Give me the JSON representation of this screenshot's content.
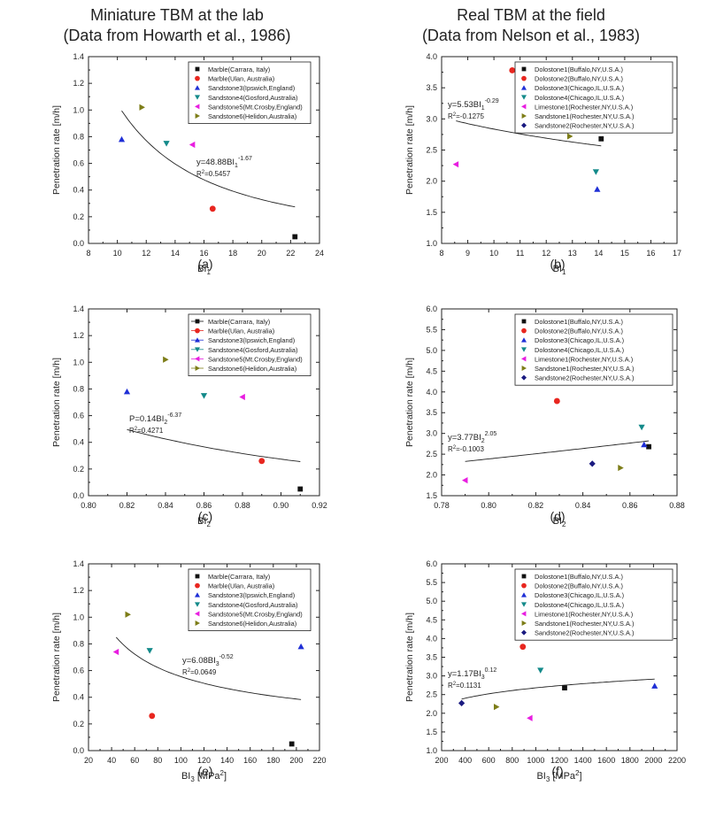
{
  "headers": {
    "left": {
      "line1": "Miniature TBM at the lab",
      "line2": "(Data from Howarth et al., 1986)"
    },
    "right": {
      "line1": "Real TBM at the field",
      "line2": "(Data from Nelson et al., 1983)"
    }
  },
  "colors": {
    "black": "#111111",
    "red": "#e8261f",
    "blue": "#1f2fd6",
    "teal": "#138a8a",
    "magenta": "#e81ee0",
    "olive": "#7d7d18",
    "navy": "#1a1a80"
  },
  "chart_data": [
    {
      "panel_label": "(a)",
      "type": "scatter",
      "xlabel": "BI",
      "xlabel_sub": "1",
      "xlabel_unit": "",
      "ylabel": "Penetration rate [m/h]",
      "xlim": [
        8,
        24
      ],
      "ylim": [
        0.0,
        1.4
      ],
      "xticks": [
        "8",
        "10",
        "12",
        "14",
        "16",
        "18",
        "20",
        "22",
        "24"
      ],
      "yticks": [
        "0.0",
        "0.2",
        "0.4",
        "0.6",
        "0.8",
        "1.0",
        "1.2",
        "1.4"
      ],
      "legend_placement": "top-right",
      "series": [
        {
          "name": "Marble(Carrara, Italy)",
          "marker": "square",
          "color": "black",
          "x": [
            22.3
          ],
          "y": [
            0.05
          ]
        },
        {
          "name": "Marble(Ulan, Australia)",
          "marker": "circle",
          "color": "red",
          "x": [
            16.6
          ],
          "y": [
            0.26
          ]
        },
        {
          "name": "Sandstone3(Ipswich,England)",
          "marker": "triangle-up",
          "color": "blue",
          "x": [
            10.3
          ],
          "y": [
            0.78
          ]
        },
        {
          "name": "Sandstone4(Gosford,Australia)",
          "marker": "triangle-down",
          "color": "teal",
          "x": [
            13.4
          ],
          "y": [
            0.75
          ]
        },
        {
          "name": "Sandstone5(Mt.Crosby,England)",
          "marker": "triangle-left",
          "color": "magenta",
          "x": [
            15.2
          ],
          "y": [
            0.74
          ]
        },
        {
          "name": "Sandstone6(Helidon,Australia)",
          "marker": "triangle-right",
          "color": "olive",
          "x": [
            11.7
          ],
          "y": [
            1.02
          ]
        }
      ],
      "fit": {
        "type": "power",
        "a": 48.88,
        "b": -1.67,
        "x_range": [
          10.3,
          22.3
        ],
        "eq_prefix": "y=48.88BI",
        "eq_sub": "1",
        "eq_sup": "-1.67",
        "r2_label": "R",
        "r2_value": "=0.5457"
      }
    },
    {
      "panel_label": "(b)",
      "type": "scatter",
      "xlabel": "BI",
      "xlabel_sub": "1",
      "xlabel_unit": "",
      "ylabel": "Penetration rate [m/h]",
      "xlim": [
        8,
        17
      ],
      "ylim": [
        1.0,
        4.0
      ],
      "xticks": [
        "8",
        "9",
        "10",
        "11",
        "12",
        "13",
        "14",
        "15",
        "16",
        "17"
      ],
      "yticks": [
        "1.0",
        "1.5",
        "2.0",
        "2.5",
        "3.0",
        "3.5",
        "4.0"
      ],
      "legend_placement": "top-right",
      "series": [
        {
          "name": "Dolostone1(Buffalo,NY,U.S.A.)",
          "marker": "square",
          "color": "black",
          "x": [
            14.1
          ],
          "y": [
            2.68
          ]
        },
        {
          "name": "Dolostone2(Buffalo,NY,U.S.A.)",
          "marker": "circle",
          "color": "red",
          "x": [
            10.7
          ],
          "y": [
            3.78
          ]
        },
        {
          "name": "Dolostone3(Chicago,IL,U.S.A.)",
          "marker": "triangle-up",
          "color": "blue",
          "x": [
            13.95
          ],
          "y": [
            1.87
          ]
        },
        {
          "name": "Dolostone4(Chicago,IL,U.S.A.)",
          "marker": "triangle-down",
          "color": "teal",
          "x": [
            13.9
          ],
          "y": [
            2.15
          ]
        },
        {
          "name": "Limestone1(Rochester,NY,U.S.A.)",
          "marker": "triangle-left",
          "color": "magenta",
          "x": [
            8.55
          ],
          "y": [
            2.27
          ]
        },
        {
          "name": "Sandstone1(Rochester,NY,U.S.A.)",
          "marker": "triangle-right",
          "color": "olive",
          "x": [
            12.9
          ],
          "y": [
            2.72
          ]
        },
        {
          "name": "Sandstone2(Rochester,NY,U.S.A.)",
          "marker": "diamond",
          "color": "navy",
          "x": [
            11.8
          ],
          "y": [
            3.15
          ]
        }
      ],
      "fit": {
        "type": "power",
        "a": 5.53,
        "b": -0.29,
        "x_range": [
          8.55,
          14.1
        ],
        "eq_prefix": "y=5.53BI",
        "eq_sub": "1",
        "eq_sup": "-0.29",
        "r2_label": "R",
        "r2_value": "=-0.1275"
      }
    },
    {
      "panel_label": "(c)",
      "type": "scatter",
      "xlabel": "BI",
      "xlabel_sub": "2",
      "xlabel_unit": "",
      "ylabel": "Penetration rate [m/h]",
      "xlim": [
        0.8,
        0.92
      ],
      "ylim": [
        0.0,
        1.4
      ],
      "xticks": [
        "0.80",
        "0.82",
        "0.84",
        "0.86",
        "0.88",
        "0.90",
        "0.92"
      ],
      "yticks": [
        "0.0",
        "0.2",
        "0.4",
        "0.6",
        "0.8",
        "1.0",
        "1.2",
        "1.4"
      ],
      "legend_placement": "top-right",
      "series": [
        {
          "name": "Marble(Carrara, Italy)",
          "marker": "square",
          "color": "black",
          "x": [
            0.91
          ],
          "y": [
            0.05
          ]
        },
        {
          "name": "Marble(Ulan, Australia)",
          "marker": "circle",
          "color": "red",
          "x": [
            0.89
          ],
          "y": [
            0.26
          ]
        },
        {
          "name": "Sandstone3(Ipswich,England)",
          "marker": "triangle-up",
          "color": "blue",
          "x": [
            0.82
          ],
          "y": [
            0.78
          ]
        },
        {
          "name": "Sandstone4(Gosford,Australia)",
          "marker": "triangle-down",
          "color": "teal",
          "x": [
            0.86
          ],
          "y": [
            0.75
          ]
        },
        {
          "name": "Sandstone5(Mt.Crosby,England)",
          "marker": "triangle-left",
          "color": "magenta",
          "x": [
            0.88
          ],
          "y": [
            0.74
          ]
        },
        {
          "name": "Sandstone6(Helidon,Australia)",
          "marker": "triangle-right",
          "color": "olive",
          "x": [
            0.84
          ],
          "y": [
            1.02
          ]
        }
      ],
      "fit": {
        "type": "power",
        "a": 0.14,
        "b": -6.37,
        "x_range": [
          0.82,
          0.91
        ],
        "eq_prefix": "P=0.14BI",
        "eq_sub": "2",
        "eq_sup": "-6.37",
        "r2_label": "R",
        "r2_value": "=0.4271"
      }
    },
    {
      "panel_label": "(d)",
      "type": "scatter",
      "xlabel": "BI",
      "xlabel_sub": "2",
      "xlabel_unit": "",
      "ylabel": "Penetration rate [m/h]",
      "xlim": [
        0.78,
        0.88
      ],
      "ylim": [
        1.5,
        6.0
      ],
      "xticks": [
        "0.78",
        "0.80",
        "0.82",
        "0.84",
        "0.86",
        "0.88"
      ],
      "yticks": [
        "1.5",
        "2.0",
        "2.5",
        "3.0",
        "3.5",
        "4.0",
        "4.5",
        "5.0",
        "5.5",
        "6.0"
      ],
      "legend_placement": "top-right",
      "series": [
        {
          "name": "Dolostone1(Buffalo,NY,U.S.A.)",
          "marker": "square",
          "color": "black",
          "x": [
            0.868
          ],
          "y": [
            2.68
          ]
        },
        {
          "name": "Dolostone2(Buffalo,NY,U.S.A.)",
          "marker": "circle",
          "color": "red",
          "x": [
            0.829
          ],
          "y": [
            3.78
          ]
        },
        {
          "name": "Dolostone3(Chicago,IL,U.S.A.)",
          "marker": "triangle-up",
          "color": "blue",
          "x": [
            0.866
          ],
          "y": [
            2.73
          ]
        },
        {
          "name": "Dolostone4(Chicago,IL,U.S.A.)",
          "marker": "triangle-down",
          "color": "teal",
          "x": [
            0.865
          ],
          "y": [
            3.15
          ]
        },
        {
          "name": "Limestone1(Rochester,NY,U.S.A.)",
          "marker": "triangle-left",
          "color": "magenta",
          "x": [
            0.79
          ],
          "y": [
            1.87
          ]
        },
        {
          "name": "Sandstone1(Rochester,NY,U.S.A.)",
          "marker": "triangle-right",
          "color": "olive",
          "x": [
            0.856
          ],
          "y": [
            2.17
          ]
        },
        {
          "name": "Sandstone2(Rochester,NY,U.S.A.)",
          "marker": "diamond",
          "color": "navy",
          "x": [
            0.844
          ],
          "y": [
            2.27
          ]
        }
      ],
      "fit": {
        "type": "power",
        "a": 3.77,
        "b": 2.05,
        "x_range": [
          0.79,
          0.868
        ],
        "eq_prefix": "y=3.77BI",
        "eq_sub": "2",
        "eq_sup": "2.05",
        "r2_label": "R",
        "r2_value": "=-0.1003"
      }
    },
    {
      "panel_label": "(e)",
      "type": "scatter",
      "xlabel": "BI",
      "xlabel_sub": "3",
      "xlabel_unit": " [MPa",
      "xlabel_unit_sup": "2",
      "xlabel_unit_end": "]",
      "ylabel": "Penetration rate [m/h]",
      "xlim": [
        20,
        220
      ],
      "ylim": [
        0.0,
        1.4
      ],
      "xticks": [
        "20",
        "40",
        "60",
        "80",
        "100",
        "120",
        "140",
        "160",
        "180",
        "200",
        "220"
      ],
      "yticks": [
        "0.0",
        "0.2",
        "0.4",
        "0.6",
        "0.8",
        "1.0",
        "1.2",
        "1.4"
      ],
      "legend_placement": "top-right",
      "series": [
        {
          "name": "Marble(Carrara, Italy)",
          "marker": "square",
          "color": "black",
          "x": [
            196
          ],
          "y": [
            0.05
          ]
        },
        {
          "name": "Marble(Ulan, Australia)",
          "marker": "circle",
          "color": "red",
          "x": [
            75
          ],
          "y": [
            0.26
          ]
        },
        {
          "name": "Sandstone3(Ipswich,England)",
          "marker": "triangle-up",
          "color": "blue",
          "x": [
            204
          ],
          "y": [
            0.78
          ]
        },
        {
          "name": "Sandstone4(Gosford,Australia)",
          "marker": "triangle-down",
          "color": "teal",
          "x": [
            73
          ],
          "y": [
            0.75
          ]
        },
        {
          "name": "Sandstone5(Mt.Crosby,England)",
          "marker": "triangle-left",
          "color": "magenta",
          "x": [
            44
          ],
          "y": [
            0.74
          ]
        },
        {
          "name": "Sandstone6(Helidon,Australia)",
          "marker": "triangle-right",
          "color": "olive",
          "x": [
            54
          ],
          "y": [
            1.02
          ]
        }
      ],
      "fit": {
        "type": "power",
        "a": 6.08,
        "b": -0.52,
        "x_range": [
          44,
          204
        ],
        "eq_prefix": "y=6.08BI",
        "eq_sub": "3",
        "eq_sup": "-0.52",
        "r2_label": "R",
        "r2_value": "=0.0649"
      }
    },
    {
      "panel_label": "(f)",
      "type": "scatter",
      "xlabel": "BI",
      "xlabel_sub": "3",
      "xlabel_unit": " [MPa",
      "xlabel_unit_sup": "2",
      "xlabel_unit_end": "]",
      "ylabel": "Penetration rate [m/h]",
      "xlim": [
        200,
        2200
      ],
      "ylim": [
        1.0,
        6.0
      ],
      "xticks": [
        "200",
        "400",
        "600",
        "800",
        "1000",
        "1200",
        "1400",
        "1600",
        "1800",
        "2000",
        "2200"
      ],
      "yticks": [
        "1.0",
        "1.5",
        "2.0",
        "2.5",
        "3.0",
        "3.5",
        "4.0",
        "4.5",
        "5.0",
        "5.5",
        "6.0"
      ],
      "legend_placement": "top-right",
      "series": [
        {
          "name": "Dolostone1(Buffalo,NY,U.S.A.)",
          "marker": "square",
          "color": "black",
          "x": [
            1245
          ],
          "y": [
            2.68
          ]
        },
        {
          "name": "Dolostone2(Buffalo,NY,U.S.A.)",
          "marker": "circle",
          "color": "red",
          "x": [
            890
          ],
          "y": [
            3.78
          ]
        },
        {
          "name": "Dolostone3(Chicago,IL,U.S.A.)",
          "marker": "triangle-up",
          "color": "blue",
          "x": [
            2010
          ],
          "y": [
            2.73
          ]
        },
        {
          "name": "Dolostone4(Chicago,IL,U.S.A.)",
          "marker": "triangle-down",
          "color": "teal",
          "x": [
            1040
          ],
          "y": [
            3.15
          ]
        },
        {
          "name": "Limestone1(Rochester,NY,U.S.A.)",
          "marker": "triangle-left",
          "color": "magenta",
          "x": [
            950
          ],
          "y": [
            1.87
          ]
        },
        {
          "name": "Sandstone1(Rochester,NY,U.S.A.)",
          "marker": "triangle-right",
          "color": "olive",
          "x": [
            665
          ],
          "y": [
            2.17
          ]
        },
        {
          "name": "Sandstone2(Rochester,NY,U.S.A.)",
          "marker": "diamond",
          "color": "navy",
          "x": [
            370
          ],
          "y": [
            2.27
          ]
        }
      ],
      "fit": {
        "type": "power",
        "a": 1.17,
        "b": 0.12,
        "x_range": [
          370,
          2010
        ],
        "eq_prefix": "y=1.17BI",
        "eq_sub": "3",
        "eq_sup": "0.12",
        "r2_label": "R",
        "r2_value": "=0.1131"
      }
    }
  ]
}
